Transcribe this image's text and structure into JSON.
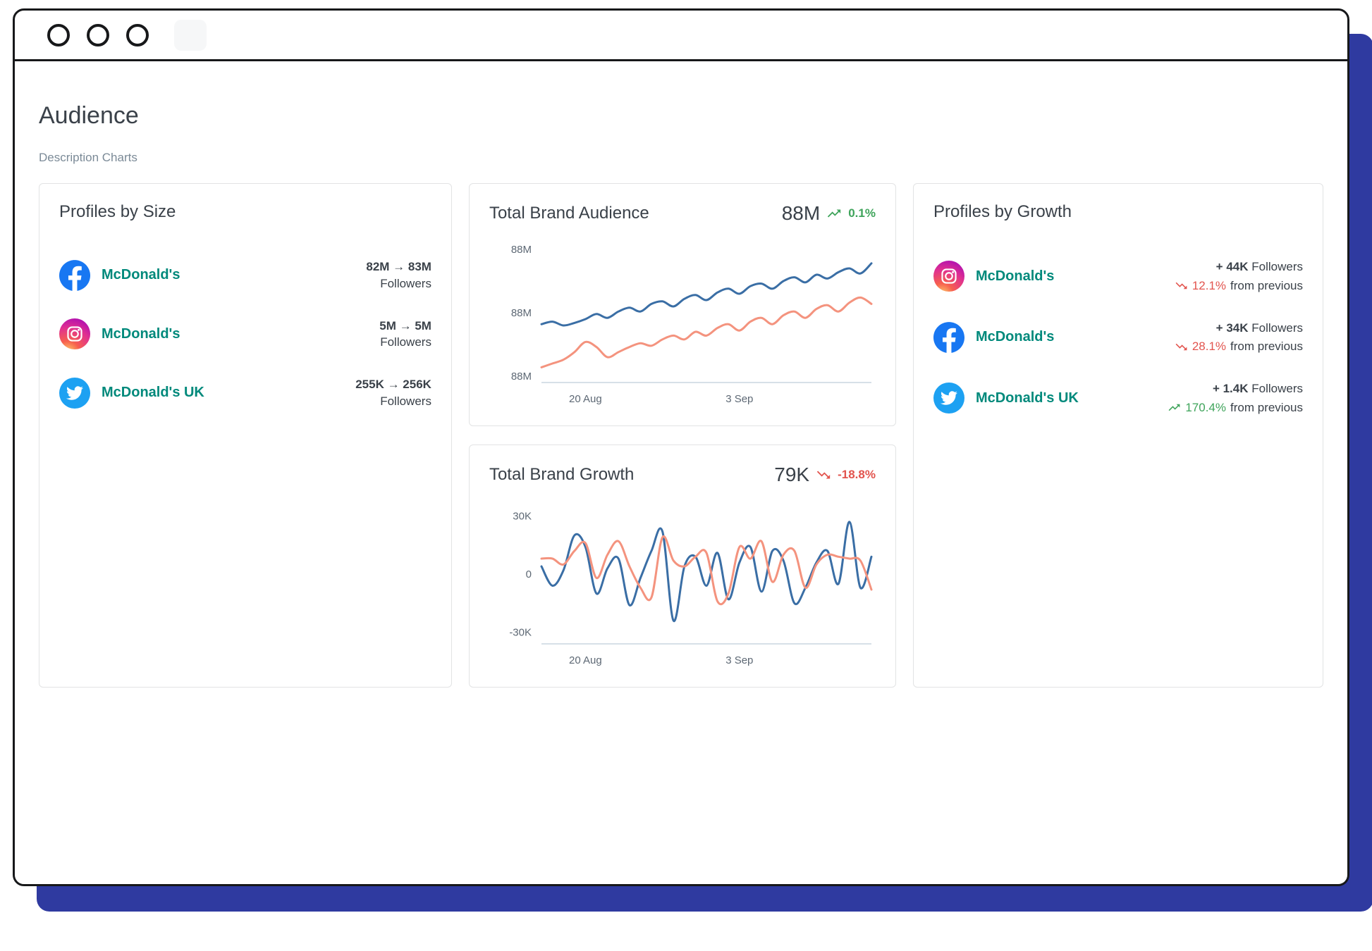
{
  "page": {
    "title": "Audience",
    "subtitle": "Description Charts"
  },
  "profiles_by_size": {
    "title": "Profiles by Size",
    "rows": [
      {
        "network": "facebook",
        "name": "McDonald's",
        "range": "82M → 83M",
        "unit": "Followers"
      },
      {
        "network": "instagram",
        "name": "McDonald's",
        "range": "5M → 5M",
        "unit": "Followers"
      },
      {
        "network": "twitter",
        "name": "McDonald's UK",
        "range": "255K → 256K",
        "unit": "Followers"
      }
    ]
  },
  "profiles_by_growth": {
    "title": "Profiles by Growth",
    "rows": [
      {
        "network": "instagram",
        "name": "McDonald's",
        "change": "+ 44K",
        "unit": "Followers",
        "pct": "12.1%",
        "pct_direction": "down",
        "pct_suffix": "from previous"
      },
      {
        "network": "facebook",
        "name": "McDonald's",
        "change": "+ 34K",
        "unit": "Followers",
        "pct": "28.1%",
        "pct_direction": "down",
        "pct_suffix": "from previous"
      },
      {
        "network": "twitter",
        "name": "McDonald's UK",
        "change": "+ 1.4K",
        "unit": "Followers",
        "pct": "170.4%",
        "pct_direction": "up",
        "pct_suffix": "from previous"
      }
    ]
  },
  "chart_data": [
    {
      "type": "line",
      "title": "Total Brand Audience",
      "headline_value": "88M",
      "delta": "0.1%",
      "delta_direction": "up",
      "x_tick_labels": [
        "20 Aug",
        "3 Sep"
      ],
      "x_tick_indices": [
        4,
        18
      ],
      "ylim": [
        87.1,
        88.2
      ],
      "y_ticks": [
        {
          "value": 88.15,
          "label": "88M"
        },
        {
          "value": 87.65,
          "label": "88M"
        },
        {
          "value": 87.15,
          "label": "88M"
        }
      ],
      "grid": false,
      "legend": "none",
      "series": [
        {
          "name": "audience-primary",
          "color": "#3a6ea5",
          "values": [
            87.56,
            87.58,
            87.55,
            87.57,
            87.6,
            87.64,
            87.61,
            87.66,
            87.69,
            87.66,
            87.72,
            87.74,
            87.7,
            87.76,
            87.79,
            87.75,
            87.81,
            87.84,
            87.8,
            87.86,
            87.88,
            87.84,
            87.9,
            87.93,
            87.89,
            87.95,
            87.92,
            87.97,
            88.0,
            87.96,
            88.04
          ]
        },
        {
          "name": "audience-secondary",
          "color": "#f4937e",
          "values": [
            87.22,
            87.25,
            87.28,
            87.34,
            87.42,
            87.38,
            87.3,
            87.34,
            87.38,
            87.41,
            87.39,
            87.44,
            87.47,
            87.44,
            87.5,
            87.47,
            87.53,
            87.56,
            87.51,
            87.58,
            87.61,
            87.56,
            87.63,
            87.66,
            87.61,
            87.68,
            87.71,
            87.66,
            87.73,
            87.77,
            87.72
          ]
        }
      ]
    },
    {
      "type": "line",
      "title": "Total Brand Growth",
      "headline_value": "79K",
      "delta": "-18.8%",
      "delta_direction": "down",
      "x_tick_labels": [
        "20 Aug",
        "3 Sep"
      ],
      "x_tick_indices": [
        4,
        18
      ],
      "ylim": [
        -36,
        36
      ],
      "y_ticks": [
        {
          "value": 30,
          "label": "30K"
        },
        {
          "value": 0,
          "label": "0"
        },
        {
          "value": -30,
          "label": "-30K"
        }
      ],
      "grid": false,
      "legend": "none",
      "series": [
        {
          "name": "growth-primary",
          "color": "#3a6ea5",
          "values": [
            4,
            -6,
            2,
            20,
            14,
            -10,
            3,
            8,
            -16,
            -2,
            12,
            22,
            -24,
            4,
            9,
            -6,
            11,
            -13,
            6,
            14,
            -9,
            12,
            7,
            -15,
            -7,
            6,
            12,
            -5,
            27,
            -7,
            9
          ]
        },
        {
          "name": "growth-secondary",
          "color": "#f4937e",
          "values": [
            8,
            8,
            5,
            12,
            16,
            -2,
            10,
            17,
            4,
            -7,
            -12,
            19,
            7,
            4,
            9,
            11,
            -14,
            -10,
            14,
            8,
            17,
            -4,
            10,
            12,
            -7,
            5,
            10,
            9,
            8,
            7,
            -8
          ]
        }
      ]
    }
  ],
  "colors": {
    "brand_link": "#00897b",
    "positive": "#3fa45b",
    "negative": "#e2544e",
    "series_primary": "#3a6ea5",
    "series_secondary": "#f4937e",
    "facebook": "#1877f2",
    "twitter": "#1da1f2",
    "instagram": "#d6249f",
    "window_shadow": "#2f3aa0"
  }
}
